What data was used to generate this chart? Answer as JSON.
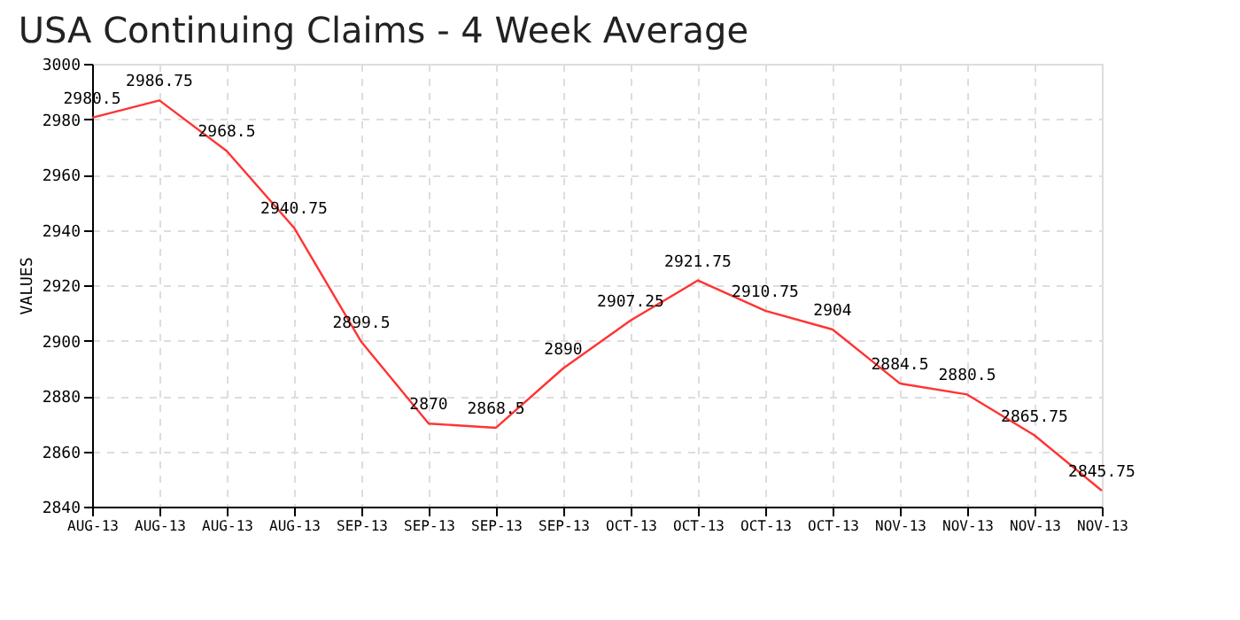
{
  "chart_data": {
    "type": "line",
    "title": "USA Continuing Claims - 4 Week Average",
    "ylabel": "VALUES",
    "categories": [
      "AUG-13",
      "AUG-13",
      "AUG-13",
      "AUG-13",
      "SEP-13",
      "SEP-13",
      "SEP-13",
      "SEP-13",
      "OCT-13",
      "OCT-13",
      "OCT-13",
      "OCT-13",
      "NOV-13",
      "NOV-13",
      "NOV-13",
      "NOV-13"
    ],
    "series": [
      {
        "color": "#ff3333",
        "values": [
          2980.5,
          2986.75,
          2968.5,
          2940.75,
          2899.5,
          2870,
          2868.5,
          2890,
          2907.25,
          2921.75,
          2910.75,
          2904,
          2884.5,
          2880.5,
          2865.75,
          2845.75
        ]
      }
    ],
    "ylim": [
      2840,
      3000
    ],
    "yticks": [
      2840,
      2860,
      2880,
      2900,
      2920,
      2940,
      2960,
      2980,
      3000
    ],
    "grid": true,
    "data_labels": true,
    "marker": "none",
    "line_style": "solid"
  }
}
